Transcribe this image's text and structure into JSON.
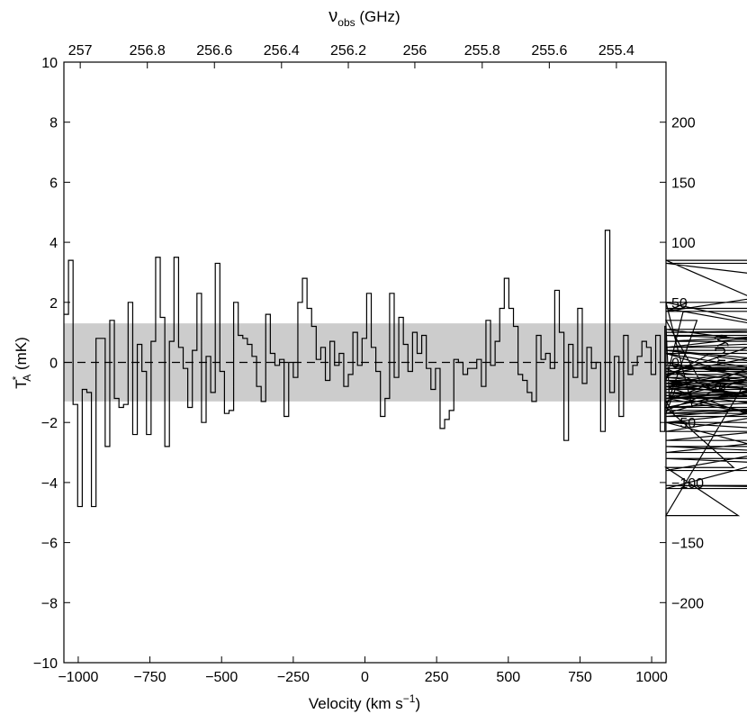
{
  "chart_data": {
    "type": "line",
    "style": "step",
    "x_axis": {
      "label": "Velocity (km s",
      "label_sup": "−1",
      "label_end": ")",
      "lim": [
        -1050,
        1050
      ],
      "ticks": [
        -1000,
        -750,
        -500,
        -250,
        0,
        250,
        500,
        750,
        1000
      ],
      "tick_labels": [
        "−1000",
        "−750",
        "−500",
        "−250",
        "0",
        "250",
        "500",
        "750",
        "1000"
      ]
    },
    "x2_axis": {
      "label": "ν",
      "label_sub": "obs",
      "label_end": " (GHz)",
      "ticks": [
        257,
        256.8,
        256.6,
        256.4,
        256.2,
        256,
        255.8,
        255.6,
        255.4
      ],
      "tick_labels": [
        "257",
        "256.8",
        "256.6",
        "256.4",
        "256.2",
        "256",
        "255.8",
        "255.6",
        "255.4"
      ],
      "tick_velocity": [
        -993,
        -759,
        -525,
        -291,
        -58,
        174,
        409,
        643,
        877
      ]
    },
    "y_axis": {
      "label": "T",
      "label_sup": "*",
      "label_sub": "A",
      "label_end": " (mK)",
      "lim": [
        -10,
        10
      ],
      "ticks": [
        -10,
        -8,
        -6,
        -4,
        -2,
        0,
        2,
        4,
        6,
        8,
        10
      ],
      "tick_labels": [
        "−10",
        "−8",
        "−6",
        "−4",
        "−2",
        "0",
        "2",
        "4",
        "6",
        "8",
        "10"
      ]
    },
    "y2_axis": {
      "label": "S",
      "label_sub": "ν",
      "label_end": " (mJy)",
      "lim": [
        -250,
        250
      ],
      "ticks": [
        -200,
        -150,
        -100,
        -50,
        0,
        50,
        100,
        150,
        200
      ],
      "tick_labels": [
        "−200",
        "−150",
        "−100",
        "−50",
        "0",
        "50",
        "100",
        "150",
        "200"
      ]
    },
    "noise_band": [
      -1.3,
      1.3
    ],
    "zero_line": 0,
    "colors": {
      "line": "#000000",
      "band": "#cccccc",
      "axes": "#000000"
    },
    "series": [
      {
        "bin_width": 16,
        "x_start": -1050,
        "values": [
          1.6,
          3.4,
          -1.4,
          -4.8,
          -0.9,
          -1.0,
          -4.8,
          0.8,
          0.8,
          -2.8,
          1.4,
          -1.2,
          -1.5,
          -1.4,
          2.0,
          -2.4,
          0.6,
          -0.3,
          -2.4,
          0.7,
          3.5,
          1.5,
          -2.8,
          0.7,
          3.5,
          0.5,
          -0.2,
          -1.5,
          0.4,
          2.3,
          -2.0,
          0.2,
          -1.0,
          3.3,
          -0.3,
          -1.7,
          -1.6,
          2.0,
          0.9,
          0.8,
          0.6,
          0.2,
          -0.8,
          -1.3,
          1.6,
          0.3,
          -0.1,
          0.1,
          -1.8,
          0.0,
          -0.5,
          2.0,
          2.8,
          1.8,
          1.2,
          0.1,
          0.5,
          -0.6,
          0.7,
          -0.1,
          0.3,
          -0.8,
          -0.4,
          1.0,
          -0.1,
          0.8,
          2.3,
          0.5,
          -0.3,
          -1.8,
          -1.2,
          2.3,
          -0.5,
          1.5,
          0.6,
          -0.3,
          1.0,
          0.3,
          0.9,
          -0.2,
          -0.9,
          -0.2,
          -2.2,
          -1.9,
          -1.6,
          0.1,
          0.0,
          -0.4,
          -0.2,
          -0.2,
          0.1,
          -0.8,
          1.4,
          -0.1,
          0.7,
          1.8,
          2.8,
          1.8,
          1.2,
          -0.4,
          -0.6,
          -1.0,
          -1.3,
          0.9,
          0.1,
          0.3,
          -0.2,
          2.4,
          1.0,
          -2.6,
          0.6,
          -0.5,
          1.8,
          -0.7,
          0.5,
          -0.2,
          0.0,
          -2.3,
          4.4,
          -1.0,
          0.2,
          -1.8,
          0.9,
          -0.4,
          -0.1,
          0.2,
          0.7,
          0.5,
          -0.4,
          0.9,
          -2.3,
          1.2,
          -1.3,
          -1.7,
          -0.6,
          1.7,
          2.0,
          -1.5,
          1.4,
          -0.7,
          -0.5,
          0.3,
          -0.2,
          -1.0,
          -1.1,
          -1.5,
          -3.5,
          -5.1,
          -0.8,
          -0.3,
          -0.6,
          -0.9,
          -0.6,
          -1.2,
          -1.8,
          -1.5,
          -1.5,
          -1.3,
          -1.3,
          0.4,
          0.0,
          -0.8,
          -1.2,
          -0.8,
          -0.2,
          -0.1,
          -0.6,
          -0.7,
          -1.6,
          0.7,
          1.0,
          1.1,
          0.3,
          -0.8,
          -3.0,
          -2.3,
          -1.2,
          0.4,
          -0.5,
          -1.2,
          -0.7,
          -1.2,
          -1.0,
          -2.0,
          -4.1,
          -4.2,
          -2.0,
          -1.1,
          -2.8,
          -3.2,
          -3.6,
          -2.0,
          -2.6,
          -1.7,
          -1.2,
          -1.0,
          -1.5,
          0.5,
          0.9,
          0.5,
          1.7,
          3.3,
          2.0,
          -0.4,
          1.8,
          -0.2,
          -0.4,
          3.4,
          -1.7,
          1.7
        ]
      }
    ]
  }
}
